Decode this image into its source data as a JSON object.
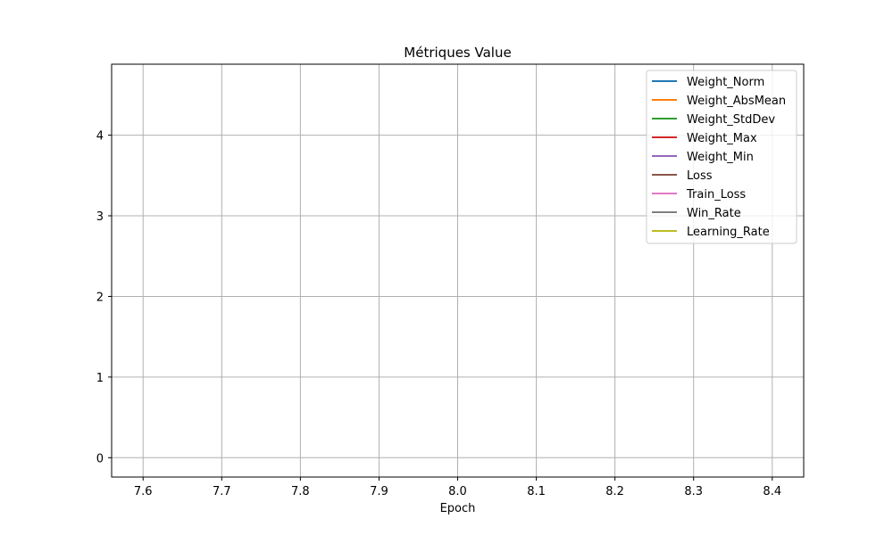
{
  "chart_data": {
    "type": "line",
    "title": "Métriques Value",
    "xlabel": "Epoch",
    "ylabel": "",
    "xlim": [
      7.56,
      8.44
    ],
    "ylim": [
      -0.24,
      4.88
    ],
    "grid": true,
    "legend_position": "top-right",
    "x_ticks": [
      {
        "value": 7.6,
        "label": "7.6"
      },
      {
        "value": 7.7,
        "label": "7.7"
      },
      {
        "value": 7.8,
        "label": "7.8"
      },
      {
        "value": 7.9,
        "label": "7.9"
      },
      {
        "value": 8.0,
        "label": "8.0"
      },
      {
        "value": 8.1,
        "label": "8.1"
      },
      {
        "value": 8.2,
        "label": "8.2"
      },
      {
        "value": 8.3,
        "label": "8.3"
      },
      {
        "value": 8.4,
        "label": "8.4"
      }
    ],
    "y_ticks": [
      {
        "value": 0,
        "label": "0"
      },
      {
        "value": 1,
        "label": "1"
      },
      {
        "value": 2,
        "label": "2"
      },
      {
        "value": 3,
        "label": "3"
      },
      {
        "value": 4,
        "label": "4"
      }
    ],
    "series": [
      {
        "name": "Weight_Norm",
        "color": "#1f77b4",
        "x": [],
        "values": []
      },
      {
        "name": "Weight_AbsMean",
        "color": "#ff7f0e",
        "x": [],
        "values": []
      },
      {
        "name": "Weight_StdDev",
        "color": "#2ca02c",
        "x": [],
        "values": []
      },
      {
        "name": "Weight_Max",
        "color": "#d62728",
        "x": [],
        "values": []
      },
      {
        "name": "Weight_Min",
        "color": "#9467bd",
        "x": [],
        "values": []
      },
      {
        "name": "Loss",
        "color": "#8c564b",
        "x": [],
        "values": []
      },
      {
        "name": "Train_Loss",
        "color": "#e377c2",
        "x": [],
        "values": []
      },
      {
        "name": "Win_Rate",
        "color": "#7f7f7f",
        "x": [],
        "values": []
      },
      {
        "name": "Learning_Rate",
        "color": "#bcbd22",
        "x": [],
        "values": []
      }
    ]
  }
}
